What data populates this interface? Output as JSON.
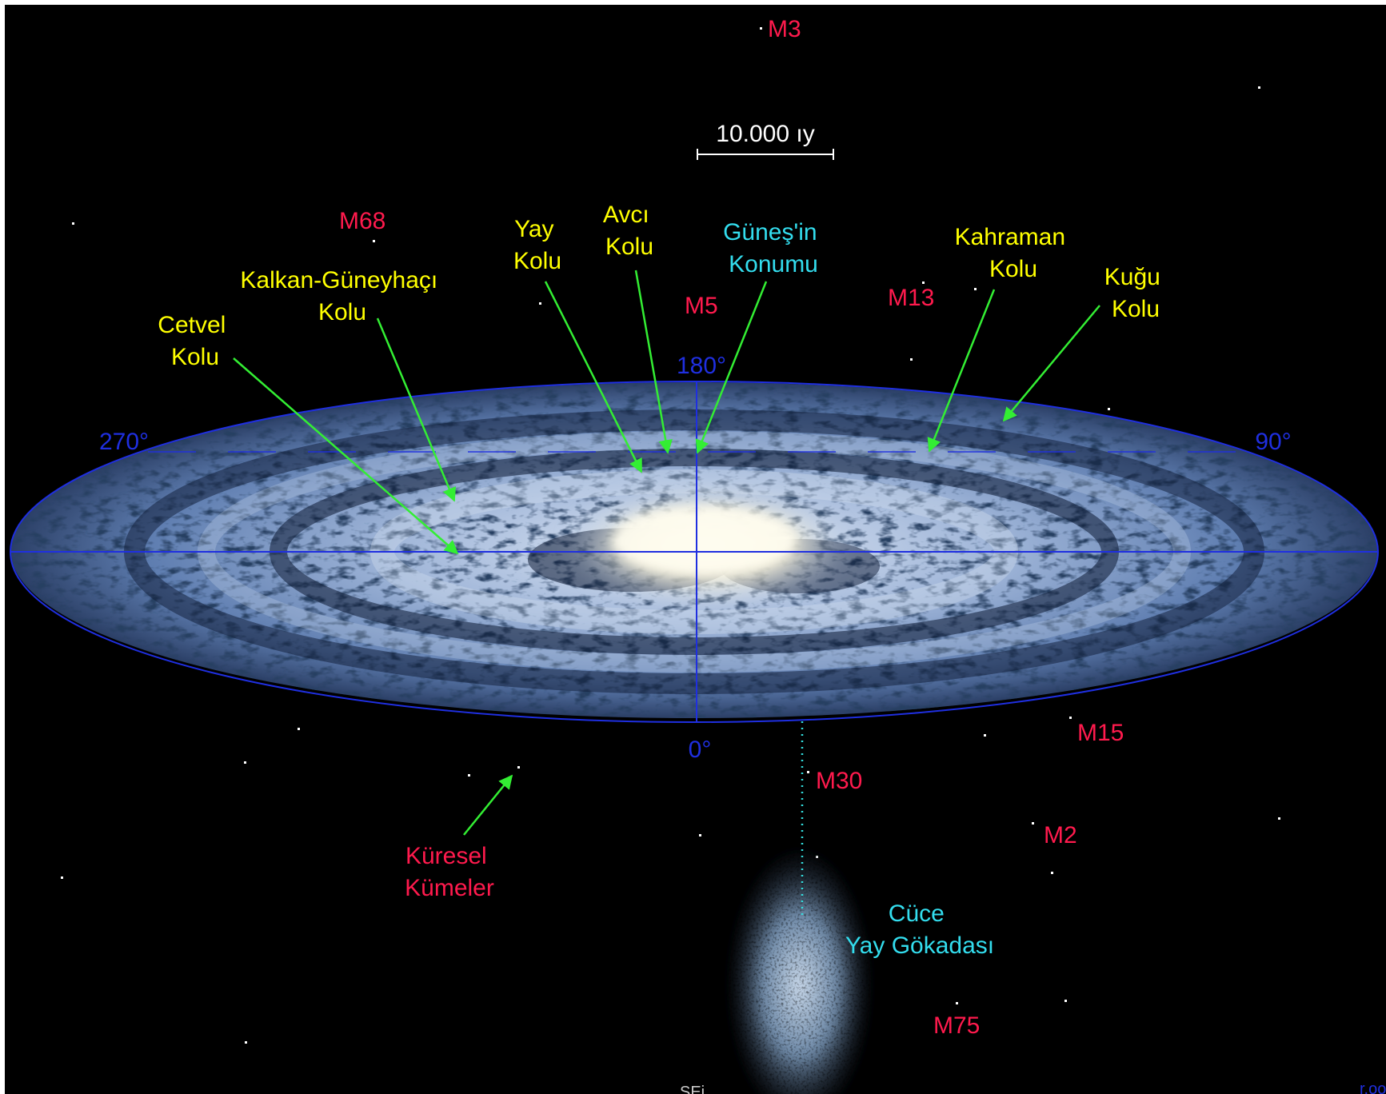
{
  "title": "",
  "scale_bar": {
    "label": "10.000 ıy"
  },
  "longitudes": {
    "l180": "180°",
    "l90": "90°",
    "l270": "270°",
    "l0": "0°"
  },
  "arms": {
    "cetvel": [
      "Cetvel",
      "Kolu"
    ],
    "kalkan": [
      "Kalkan-Güneyhaçı",
      "Kolu"
    ],
    "yay": [
      "Yay",
      "Kolu"
    ],
    "avci": [
      "Avcı",
      "Kolu"
    ],
    "kahraman": [
      "Kahraman",
      "Kolu"
    ],
    "kugu": [
      "Kuğu",
      "Kolu"
    ]
  },
  "sun_position": [
    "Güneş'in",
    "Konumu"
  ],
  "globular_clusters": {
    "label": [
      "Küresel",
      "Kümeler"
    ],
    "items": {
      "m3": "M3",
      "m68": "M68",
      "m5": "M5",
      "m13": "M13",
      "m15": "M15",
      "m30": "M30",
      "m2": "M2",
      "m75": "M75"
    }
  },
  "dwarf_galaxy": [
    "Cüce",
    "Yay Gökadası"
  ],
  "bottom_fragments": {
    "center": "SEi",
    "right": "r.oo"
  },
  "colors": {
    "background": "#000000",
    "arm_label": "#ffff00",
    "cluster_label": "#ff1a4d",
    "sun_label": "#33ddee",
    "grid": "#1f2fe0",
    "arrow": "#33ee33",
    "disk_light": "#b7cbe8",
    "core": "#fff6dc"
  }
}
